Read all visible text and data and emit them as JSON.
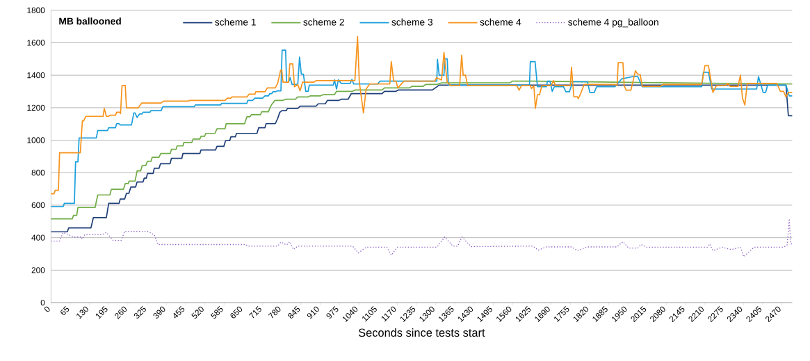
{
  "chart_data": {
    "type": "line",
    "ylabel": "MB ballooned",
    "xlabel": "Seconds since tests start",
    "xlim": [
      0,
      2505
    ],
    "ylim": [
      0,
      1800
    ],
    "xticks": [
      0,
      65,
      130,
      195,
      260,
      325,
      390,
      455,
      520,
      585,
      650,
      715,
      780,
      845,
      910,
      975,
      1040,
      1105,
      1170,
      1235,
      1300,
      1365,
      1430,
      1495,
      1560,
      1625,
      1690,
      1755,
      1820,
      1885,
      1950,
      2015,
      2080,
      2145,
      2210,
      2275,
      2340,
      2405,
      2470
    ],
    "yticks": [
      0,
      200,
      400,
      600,
      800,
      1000,
      1200,
      1400,
      1600,
      1800
    ],
    "grid": "y",
    "legend": "top",
    "series": [
      {
        "name": "scheme 1",
        "color": "#1f3f7a",
        "line_style": "solid",
        "x": [
          0,
          55,
          60,
          135,
          143,
          187,
          195,
          230,
          234,
          249,
          255,
          263,
          270,
          286,
          291,
          311,
          315,
          322,
          326,
          345,
          349,
          365,
          370,
          402,
          407,
          442,
          446,
          503,
          507,
          556,
          561,
          584,
          590,
          604,
          608,
          623,
          627,
          696,
          702,
          723,
          727,
          758,
          766,
          773,
          780,
          795,
          799,
          834,
          842,
          896,
          903,
          927,
          934,
          973,
          981,
          1004,
          1015,
          1119,
          1127,
          1166,
          1173,
          1289,
          1312,
          1628,
          2000,
          2484,
          2492,
          2505
        ],
        "values": [
          436,
          436,
          460,
          460,
          523,
          523,
          611,
          611,
          638,
          638,
          673,
          673,
          712,
          712,
          743,
          743,
          766,
          766,
          795,
          795,
          827,
          827,
          855,
          855,
          888,
          888,
          918,
          918,
          940,
          940,
          962,
          962,
          997,
          997,
          1021,
          1021,
          1042,
          1042,
          1077,
          1077,
          1102,
          1102,
          1133,
          1171,
          1182,
          1182,
          1196,
          1196,
          1210,
          1210,
          1224,
          1224,
          1245,
          1245,
          1252,
          1252,
          1287,
          1287,
          1301,
          1301,
          1309,
          1309,
          1339,
          1339,
          1339,
          1339,
          1151,
          1151
        ]
      },
      {
        "name": "scheme 2",
        "color": "#70ad47",
        "line_style": "solid",
        "x": [
          0,
          72,
          76,
          87,
          91,
          149,
          158,
          199,
          204,
          245,
          251,
          261,
          264,
          284,
          291,
          303,
          308,
          320,
          326,
          338,
          342,
          365,
          371,
          403,
          407,
          423,
          426,
          446,
          449,
          476,
          480,
          503,
          507,
          519,
          523,
          554,
          561,
          588,
          592,
          654,
          662,
          672,
          677,
          708,
          712,
          735,
          739,
          746,
          757,
          784,
          792,
          826,
          834,
          869,
          876,
          911,
          919,
          958,
          965,
          1019,
          1027,
          1119,
          1127,
          1212,
          1220,
          1258,
          1266,
          1304,
          1320,
          1551,
          1559,
          1628,
          2000,
          2505
        ],
        "values": [
          516,
          516,
          537,
          537,
          586,
          586,
          663,
          663,
          698,
          698,
          733,
          733,
          748,
          748,
          811,
          811,
          843,
          843,
          870,
          870,
          895,
          895,
          918,
          918,
          944,
          944,
          965,
          965,
          986,
          986,
          1007,
          1007,
          1024,
          1024,
          1042,
          1042,
          1070,
          1070,
          1101,
          1101,
          1144,
          1144,
          1157,
          1157,
          1175,
          1175,
          1196,
          1220,
          1245,
          1245,
          1252,
          1252,
          1266,
          1266,
          1273,
          1273,
          1280,
          1280,
          1301,
          1301,
          1309,
          1309,
          1322,
          1322,
          1332,
          1332,
          1343,
          1343,
          1353,
          1353,
          1364,
          1364,
          1355,
          1346
        ]
      },
      {
        "name": "scheme 3",
        "color": "#1a9fdb",
        "line_style": "solid",
        "x": [
          0,
          41,
          45,
          79,
          83,
          91,
          95,
          153,
          158,
          191,
          195,
          218,
          222,
          230,
          234,
          272,
          280,
          284,
          291,
          299,
          307,
          311,
          334,
          338,
          372,
          378,
          484,
          488,
          573,
          577,
          662,
          665,
          681,
          689,
          715,
          723,
          735,
          739,
          746,
          750,
          758,
          766,
          777,
          781,
          793,
          796,
          803,
          808,
          815,
          834,
          840,
          846,
          853,
          861,
          869,
          873,
          954,
          958,
          965,
          971,
          981,
          1011,
          1017,
          1023,
          1104,
          1112,
          1304,
          1306,
          1312,
          1328,
          1331,
          1339,
          1343,
          1617,
          1620,
          1636,
          1644,
          1674,
          1678,
          1686,
          1694,
          1701,
          1732,
          1740,
          1752,
          1763,
          1813,
          1821,
          1836,
          1844,
          1906,
          1929,
          1967,
          1983,
          1998,
          2199,
          2205,
          2222,
          2233,
          2330,
          2385,
          2391,
          2407,
          2415,
          2422,
          2484,
          2495,
          2505
        ],
        "values": [
          591,
          591,
          611,
          611,
          867,
          867,
          1014,
          1014,
          1060,
          1060,
          1077,
          1077,
          1102,
          1102,
          1094,
          1094,
          1168,
          1168,
          1140,
          1161,
          1161,
          1172,
          1172,
          1182,
          1182,
          1206,
          1206,
          1217,
          1217,
          1227,
          1227,
          1245,
          1245,
          1259,
          1259,
          1273,
          1273,
          1287,
          1287,
          1298,
          1298,
          1304,
          1304,
          1554,
          1554,
          1357,
          1357,
          1385,
          1343,
          1343,
          1512,
          1407,
          1407,
          1301,
          1301,
          1339,
          1339,
          1371,
          1315,
          1371,
          1350,
          1350,
          1374,
          1346,
          1346,
          1364,
          1364,
          1498,
          1400,
          1400,
          1501,
          1501,
          1339,
          1339,
          1484,
          1484,
          1329,
          1329,
          1364,
          1364,
          1301,
          1329,
          1329,
          1298,
          1298,
          1360,
          1360,
          1294,
          1294,
          1329,
          1329,
          1378,
          1392,
          1392,
          1329,
          1329,
          1418,
          1418,
          1315,
          1315,
          1315,
          1392,
          1294,
          1294,
          1339,
          1339,
          1273,
          1273
        ]
      },
      {
        "name": "scheme 4",
        "color": "#f7941d",
        "line_style": "solid",
        "x": [
          0,
          10,
          14,
          25,
          29,
          99,
          106,
          110,
          118,
          176,
          180,
          187,
          195,
          199,
          218,
          222,
          234,
          235,
          240,
          251,
          255,
          295,
          307,
          372,
          380,
          465,
          469,
          588,
          596,
          608,
          611,
          662,
          669,
          689,
          692,
          723,
          731,
          758,
          766,
          776,
          780,
          784,
          803,
          807,
          817,
          823,
          834,
          842,
          850,
          888,
          896,
          1027,
          1036,
          1042,
          1056,
          1065,
          1077,
          1145,
          1150,
          1158,
          1166,
          1172,
          1193,
          1297,
          1303,
          1320,
          1328,
          1339,
          1351,
          1381,
          1388,
          1393,
          1401,
          1408,
          1574,
          1582,
          1590,
          1620,
          1624,
          1632,
          1637,
          1644,
          1651,
          1659,
          1690,
          1698,
          1705,
          1755,
          1759,
          1767,
          1779,
          1782,
          1790,
          1802,
          1906,
          1913,
          1917,
          1933,
          1937,
          1944,
          1960,
          1975,
          1983,
          1991,
          1998,
          2060,
          2068,
          2199,
          2210,
          2222,
          2237,
          2249,
          2280,
          2287,
          2295,
          2322,
          2330,
          2337,
          2345,
          2353,
          2453,
          2465,
          2476,
          2484,
          2492,
          2505
        ],
        "values": [
          670,
          670,
          691,
          691,
          923,
          923,
          1119,
          1119,
          1147,
          1147,
          1196,
          1147,
          1147,
          1154,
          1154,
          1172,
          1172,
          1164,
          1337,
          1337,
          1199,
          1199,
          1229,
          1229,
          1241,
          1241,
          1245,
          1245,
          1259,
          1259,
          1266,
          1266,
          1283,
          1283,
          1298,
          1298,
          1322,
          1322,
          1350,
          1431,
          1431,
          1357,
          1357,
          1470,
          1470,
          1329,
          1343,
          1304,
          1357,
          1357,
          1367,
          1367,
          1638,
          1357,
          1168,
          1315,
          1346,
          1346,
          1484,
          1364,
          1364,
          1322,
          1364,
          1364,
          1385,
          1371,
          1540,
          1357,
          1336,
          1336,
          1523,
          1400,
          1400,
          1336,
          1336,
          1308,
          1336,
          1336,
          1318,
          1336,
          1196,
          1280,
          1280,
          1336,
          1336,
          1367,
          1336,
          1336,
          1449,
          1267,
          1267,
          1255,
          1287,
          1343,
          1343,
          1336,
          1477,
          1477,
          1336,
          1308,
          1308,
          1427,
          1406,
          1406,
          1332,
          1332,
          1343,
          1343,
          1459,
          1459,
          1294,
          1336,
          1336,
          1350,
          1332,
          1332,
          1400,
          1259,
          1217,
          1350,
          1350,
          1301,
          1301,
          1266,
          1294,
          1294
        ]
      },
      {
        "name": "scheme 4 pg_balloon",
        "color": "#8a5cc8",
        "line_style": "dotted",
        "x": [
          0,
          29,
          41,
          79,
          103,
          105,
          114,
          172,
          187,
          210,
          237,
          249,
          326,
          349,
          361,
          658,
          665,
          766,
          777,
          796,
          807,
          819,
          834,
          1019,
          1039,
          1065,
          1135,
          1150,
          1170,
          1304,
          1331,
          1358,
          1374,
          1389,
          1420,
          1628,
          1647,
          1674,
          1759,
          1779,
          1813,
          1913,
          1933,
          1952,
          1983,
          1994,
          2014,
          2218,
          2226,
          2237,
          2268,
          2299,
          2330,
          2341,
          2376,
          2476,
          2488,
          2495,
          2500,
          2505
        ],
        "values": [
          379,
          379,
          432,
          404,
          404,
          390,
          418,
          418,
          432,
          383,
          383,
          439,
          439,
          418,
          358,
          358,
          348,
          348,
          373,
          355,
          376,
          327,
          348,
          348,
          306,
          341,
          341,
          292,
          341,
          341,
          404,
          348,
          348,
          404,
          345,
          348,
          323,
          343,
          343,
          320,
          343,
          343,
          376,
          336,
          336,
          358,
          341,
          341,
          362,
          320,
          341,
          327,
          341,
          282,
          341,
          341,
          355,
          516,
          362,
          362
        ]
      }
    ]
  }
}
